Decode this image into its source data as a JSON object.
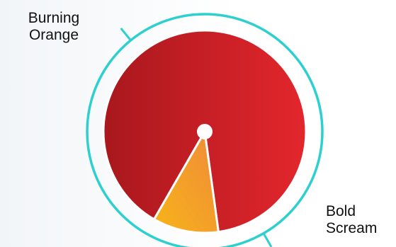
{
  "chart_data": {
    "type": "pie",
    "slices": [
      {
        "label": "Bold Scream",
        "label_lines": [
          "Bold",
          "Scream"
        ],
        "value": 89.5,
        "color": "#d11f25",
        "color_dark": "#a8181d",
        "color_light": "#e3262d"
      },
      {
        "label": "Burning Orange",
        "label_lines": [
          "Burning",
          "Orange"
        ],
        "value": 10.5,
        "color": "#f4a224",
        "color_dark": "#ef8a3a",
        "color_light": "#f7b419"
      }
    ],
    "ring_color": "#2ecfcf",
    "center_dot_color": "#ffffff",
    "title": "",
    "legend": "none"
  }
}
